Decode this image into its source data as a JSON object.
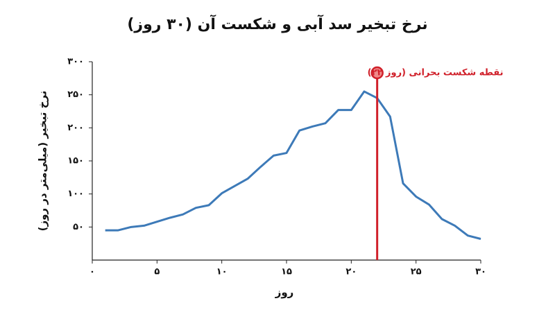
{
  "chart_data": {
    "type": "line",
    "title": "نرخ تبخیر سد آبی و شکست آن (۳۰ روز)",
    "x_label": "روز",
    "y_label": "نرخ تبخیر (میلی‌متر در روز)",
    "x": [
      1,
      2,
      3,
      4,
      5,
      6,
      7,
      8,
      9,
      10,
      11,
      12,
      13,
      14,
      15,
      16,
      17,
      18,
      19,
      20,
      21,
      22,
      23,
      24,
      25,
      26,
      27,
      28,
      29,
      30
    ],
    "series": [
      {
        "name": "نرخ تبخیر",
        "color": "#3d7ab8",
        "values": [
          45,
          45,
          50,
          52,
          58,
          64,
          69,
          79,
          83,
          101,
          112,
          123,
          141,
          158,
          162,
          196,
          202,
          207,
          227,
          227,
          255,
          245,
          217,
          116,
          96,
          84,
          62,
          52,
          37,
          32
        ]
      }
    ],
    "xlim": [
      0,
      30
    ],
    "xticks": [
      {
        "value": 0,
        "label": "۰"
      },
      {
        "value": 5,
        "label": "۵"
      },
      {
        "value": 10,
        "label": "۱۰"
      },
      {
        "value": 15,
        "label": "۱۵"
      },
      {
        "value": 20,
        "label": "۲۰"
      },
      {
        "value": 25,
        "label": "۲۵"
      },
      {
        "value": 30,
        "label": "۳۰"
      }
    ],
    "ylim": [
      0,
      300
    ],
    "yticks": [
      {
        "value": 50,
        "label": "۵۰"
      },
      {
        "value": 100,
        "label": "۱۰۰"
      },
      {
        "value": 150,
        "label": "۱۵۰"
      },
      {
        "value": 200,
        "label": "۲۰۰"
      },
      {
        "value": 250,
        "label": "۲۵۰"
      },
      {
        "value": 300,
        "label": "۳۰۰"
      }
    ],
    "critical_point": {
      "x": 22,
      "label": "نقطه شکست بحرانی (روز ۲۲)",
      "color": "#d0202a"
    }
  }
}
